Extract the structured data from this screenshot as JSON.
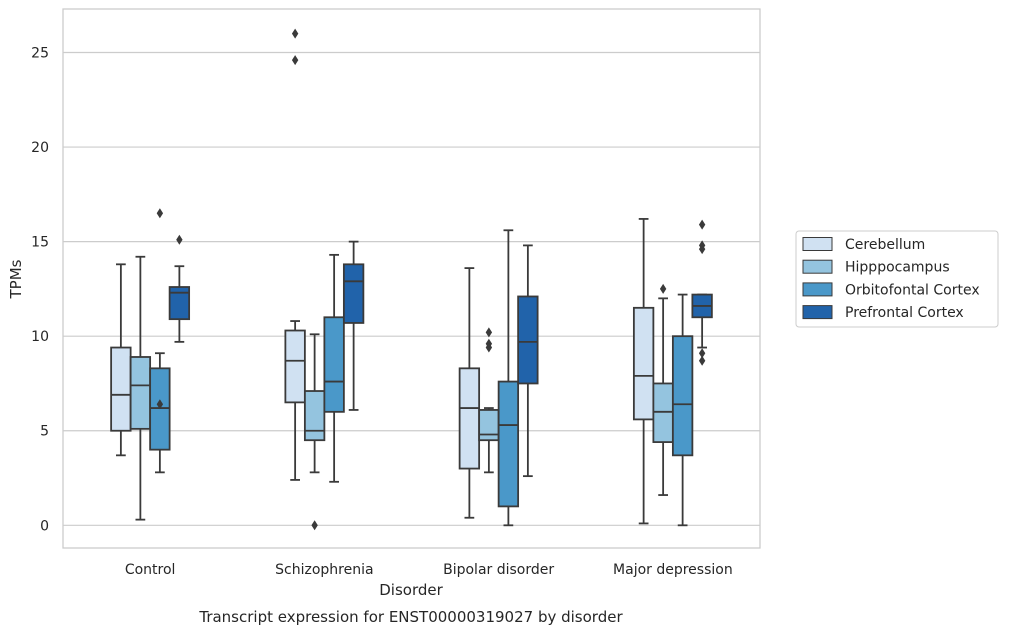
{
  "chart_data": {
    "type": "box",
    "caption": "Transcript expression for ENST00000319027 by disorder",
    "xlabel": "Disorder",
    "ylabel": "TPMs",
    "categories": [
      "Control",
      "Schizophrenia",
      "Bipolar disorder",
      "Major depression"
    ],
    "ylim": [
      -1.2,
      27.3
    ],
    "yticks": [
      0,
      5,
      10,
      15,
      20,
      25
    ],
    "grid": true,
    "legend_position": "right",
    "series": [
      {
        "name": "Cerebellum",
        "color": "#d0e1f2",
        "boxes": [
          {
            "whisker_low": 3.7,
            "q1": 5.0,
            "median": 6.9,
            "q3": 9.4,
            "whisker_high": 13.8,
            "outliers": []
          },
          {
            "whisker_low": 2.4,
            "q1": 6.5,
            "median": 8.7,
            "q3": 10.3,
            "whisker_high": 10.8,
            "outliers": [
              26.0,
              24.6
            ]
          },
          {
            "whisker_low": 0.4,
            "q1": 3.0,
            "median": 6.2,
            "q3": 8.3,
            "whisker_high": 13.6,
            "outliers": []
          },
          {
            "whisker_low": 0.1,
            "q1": 5.6,
            "median": 7.9,
            "q3": 11.5,
            "whisker_high": 16.2,
            "outliers": []
          }
        ]
      },
      {
        "name": "Hipppocampus",
        "color": "#94c4df",
        "boxes": [
          {
            "whisker_low": 0.3,
            "q1": 5.1,
            "median": 7.4,
            "q3": 8.9,
            "whisker_high": 14.2,
            "outliers": []
          },
          {
            "whisker_low": 2.8,
            "q1": 4.5,
            "median": 5.0,
            "q3": 7.1,
            "whisker_high": 10.1,
            "outliers": [
              0.0
            ]
          },
          {
            "whisker_low": 2.8,
            "q1": 4.5,
            "median": 4.8,
            "q3": 6.1,
            "whisker_high": 6.2,
            "outliers": [
              10.2,
              9.6,
              9.4
            ]
          },
          {
            "whisker_low": 1.6,
            "q1": 4.4,
            "median": 6.0,
            "q3": 7.5,
            "whisker_high": 12.0,
            "outliers": [
              12.5
            ]
          }
        ]
      },
      {
        "name": "Orbitofontal Cortex",
        "color": "#4a98c9",
        "boxes": [
          {
            "whisker_low": 2.8,
            "q1": 4.0,
            "median": 6.2,
            "q3": 8.3,
            "whisker_high": 9.1,
            "outliers": [
              16.5,
              6.4
            ]
          },
          {
            "whisker_low": 2.3,
            "q1": 6.0,
            "median": 7.6,
            "q3": 11.0,
            "whisker_high": 14.3,
            "outliers": []
          },
          {
            "whisker_low": 0.0,
            "q1": 1.0,
            "median": 5.3,
            "q3": 7.6,
            "whisker_high": 15.6,
            "outliers": []
          },
          {
            "whisker_low": 0.0,
            "q1": 3.7,
            "median": 6.4,
            "q3": 10.0,
            "whisker_high": 12.2,
            "outliers": []
          }
        ]
      },
      {
        "name": "Prefrontal Cortex",
        "color": "#2163aa",
        "boxes": [
          {
            "whisker_low": 9.7,
            "q1": 10.9,
            "median": 12.3,
            "q3": 12.6,
            "whisker_high": 13.7,
            "outliers": [
              15.1
            ]
          },
          {
            "whisker_low": 6.1,
            "q1": 10.7,
            "median": 12.9,
            "q3": 13.8,
            "whisker_high": 15.0,
            "outliers": []
          },
          {
            "whisker_low": 2.6,
            "q1": 7.5,
            "median": 9.7,
            "q3": 12.1,
            "whisker_high": 14.8,
            "outliers": []
          },
          {
            "whisker_low": 9.4,
            "q1": 11.0,
            "median": 11.6,
            "q3": 12.2,
            "whisker_high": 12.2,
            "outliers": [
              15.9,
              14.8,
              14.6,
              9.1,
              8.7
            ]
          }
        ]
      }
    ]
  }
}
